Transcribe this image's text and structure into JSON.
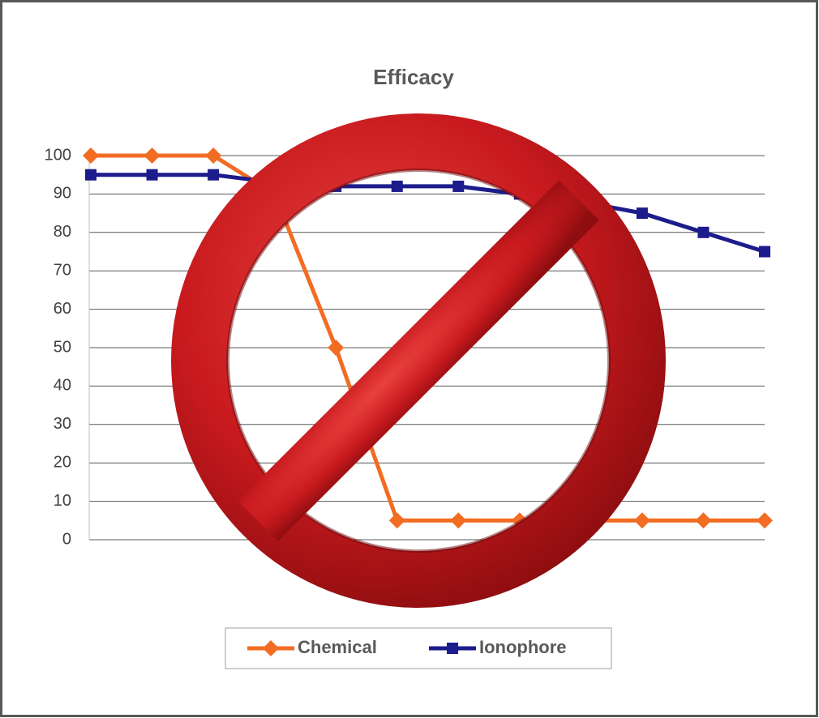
{
  "chart_data": {
    "type": "line",
    "title": "Efficacy",
    "categories": [
      null,
      null,
      null,
      null,
      null,
      null,
      null,
      null,
      null,
      null,
      null,
      null
    ],
    "series": [
      {
        "name": "Chemical",
        "color": "#f26c22",
        "marker": "diamond",
        "values": [
          100,
          100,
          100,
          90,
          50,
          5,
          5,
          5,
          5,
          5,
          5,
          5
        ]
      },
      {
        "name": "Ionophore",
        "color": "#1c1c8c",
        "marker": "square",
        "values": [
          95,
          95,
          95,
          93,
          92,
          92,
          92,
          90,
          88,
          85,
          80,
          75
        ]
      }
    ],
    "ylim": [
      0,
      100
    ],
    "yticks": [
      0,
      10,
      20,
      30,
      40,
      50,
      60,
      70,
      80,
      90,
      100
    ],
    "grid": true,
    "legend": "bottom"
  }
}
